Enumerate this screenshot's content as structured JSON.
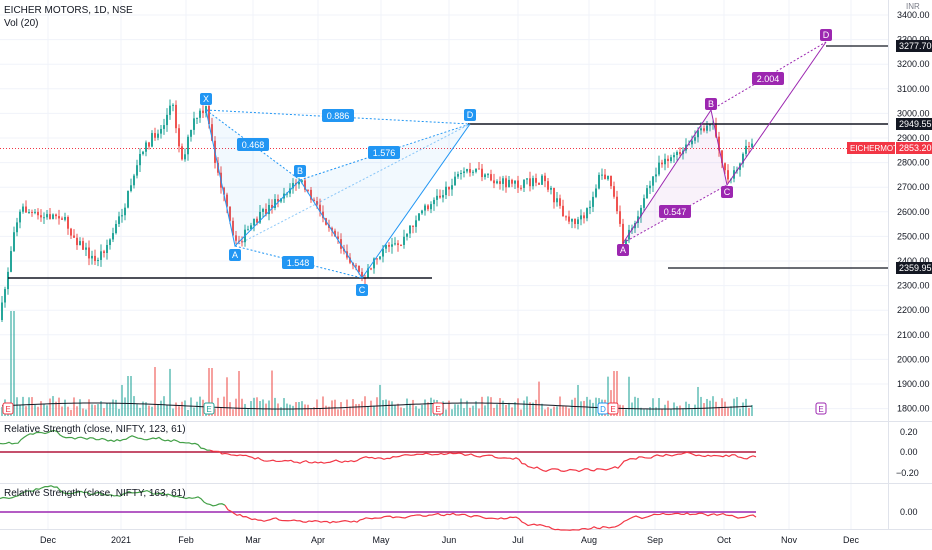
{
  "header": {
    "symbol_line": "EICHER MOTORS, 1D, NSE",
    "volume_line": "Vol (20)",
    "currency": "INR"
  },
  "panes": {
    "rs1_label": "Relative Strength (close, NIFTY, 123, 61)",
    "rs2_label": "Relative Strength (close, NIFTY, 163, 61)"
  },
  "price_axis": {
    "ticks": [
      "3400.00",
      "3300.00",
      "3200.00",
      "3100.00",
      "3000.00",
      "2900.00",
      "2800.00",
      "2700.00",
      "2600.00",
      "2500.00",
      "2400.00",
      "2300.00",
      "2200.00",
      "2100.00",
      "2000.00",
      "1900.00",
      "1800.00"
    ],
    "flags": [
      {
        "text": "3277.70",
        "color": "#131722",
        "bg": "#131722"
      },
      {
        "text": "2949.55",
        "color": "#131722",
        "bg": "#131722"
      },
      {
        "text": "2853.20",
        "color": "#f23645",
        "bg": "#f23645",
        "tag": "EICHERMOT"
      },
      {
        "text": "2359.95",
        "color": "#131722",
        "bg": "#131722"
      }
    ]
  },
  "rs1_axis": {
    "ticks": [
      "0.20",
      "0.00",
      "−0.20"
    ]
  },
  "rs2_axis": {
    "ticks": [
      "0.00"
    ]
  },
  "time_axis": {
    "labels": [
      "Dec",
      "2021",
      "Feb",
      "Mar",
      "Apr",
      "May",
      "Jun",
      "Jul",
      "Aug",
      "Sep",
      "Oct",
      "Nov",
      "Dec"
    ]
  },
  "patterns": {
    "blue": {
      "points": [
        "X",
        "A",
        "B",
        "C",
        "D"
      ],
      "ratios": [
        "0.886",
        "0.468",
        "1.576",
        "1.548"
      ],
      "color": "#2196f3"
    },
    "purple": {
      "points": [
        "A",
        "B",
        "C",
        "D"
      ],
      "ratios": [
        "2.004",
        "0.547"
      ],
      "color": "#9c27b0"
    }
  },
  "events": [
    "E",
    "E",
    "E",
    "D",
    "E",
    "E"
  ],
  "colors": {
    "up": "#26a69a",
    "down": "#ef5350",
    "rs_up": "#43a047",
    "rs_down": "#f23645",
    "ref_line": "#b2163b"
  }
}
